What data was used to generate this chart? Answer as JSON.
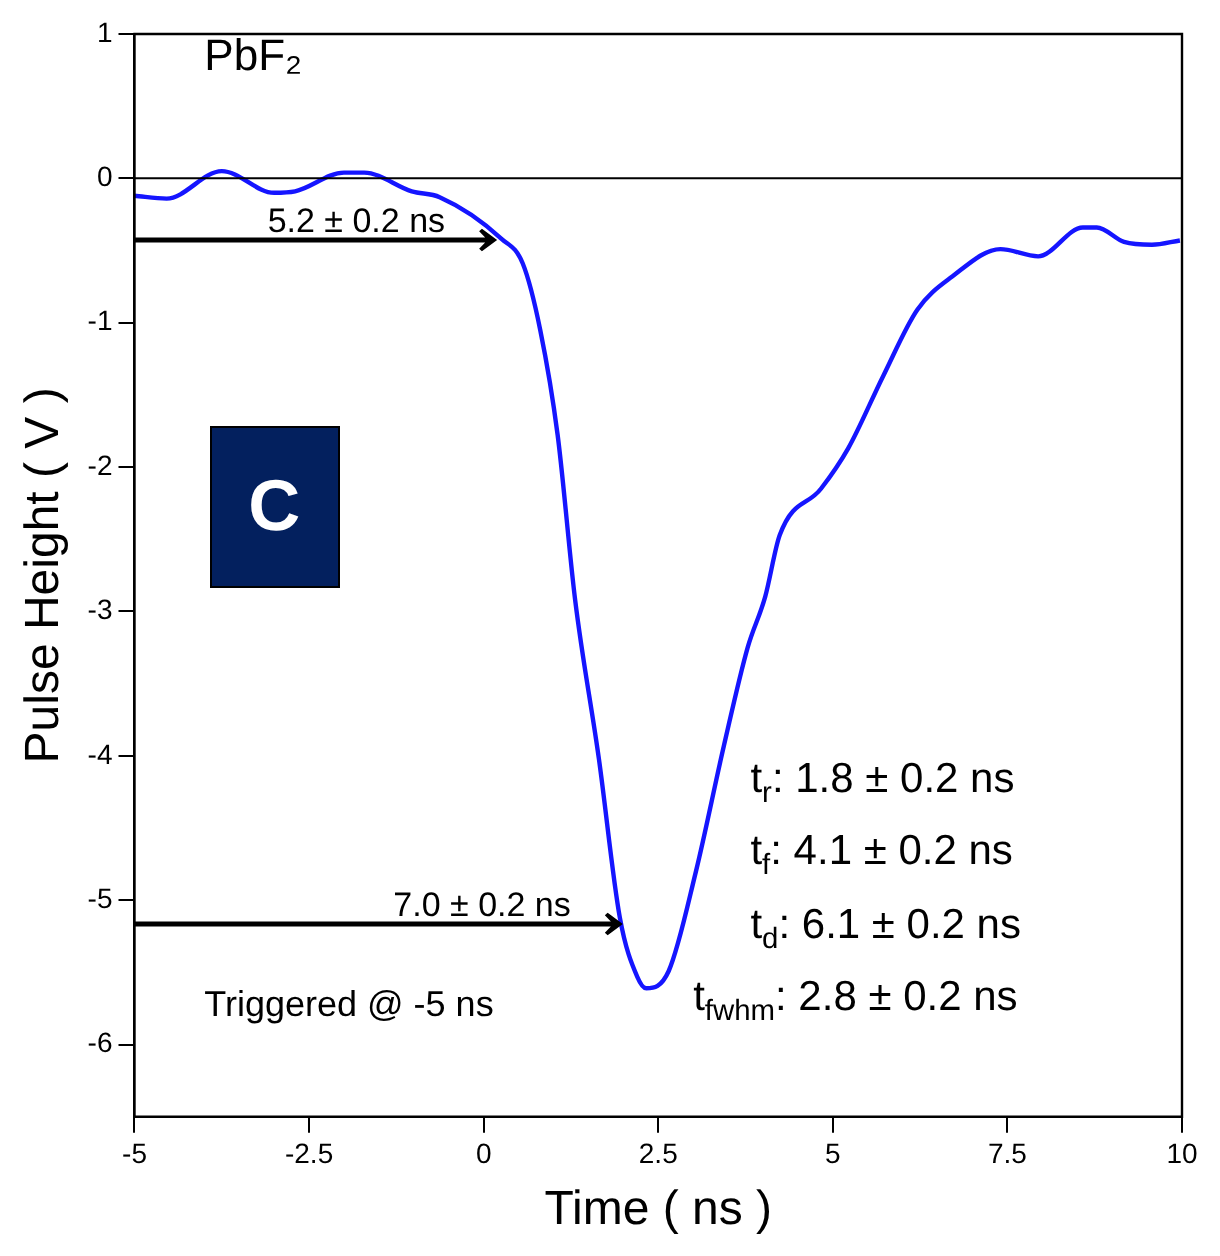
{
  "chart_data": {
    "type": "line",
    "xlabel": "Time ( ns )",
    "ylabel": "Pulse Height ( V )",
    "xlim": [
      -5,
      10
    ],
    "ylim": [
      -6.5,
      1
    ],
    "xticks": [
      -5,
      -2.5,
      0,
      2.5,
      5,
      7.5,
      10
    ],
    "yticks": [
      -6,
      -5,
      -4,
      -3,
      -2,
      -1,
      0,
      1
    ],
    "grid": false,
    "legend": false,
    "marker": "none",
    "line_style": "solid",
    "ref_lines": [
      {
        "axis": "y",
        "value": 0,
        "color": "#000000"
      }
    ],
    "series": [
      {
        "color": "#1515ff",
        "x": [
          -5,
          -4.54,
          -3.75,
          -3.0,
          -2.7,
          -2.0,
          -1.71,
          -1.03,
          -0.63,
          0.26,
          0.56,
          0.81,
          1.06,
          1.31,
          1.65,
          1.95,
          2.2,
          2.33,
          2.65,
          3.04,
          3.44,
          3.78,
          4.03,
          4.24,
          4.83,
          5.22,
          5.72,
          6.21,
          6.71,
          7.4,
          7.94,
          8.58,
          8.78,
          9.17,
          9.57,
          9.97
        ],
        "values": [
          -0.12,
          -0.14,
          0.05,
          -0.1,
          -0.09,
          0.04,
          0.04,
          -0.09,
          -0.13,
          -0.42,
          -0.59,
          -1.05,
          -1.78,
          -2.92,
          -4.02,
          -5.12,
          -5.53,
          -5.61,
          -5.49,
          -4.8,
          -3.93,
          -3.25,
          -2.9,
          -2.47,
          -2.15,
          -1.87,
          -1.37,
          -0.91,
          -0.68,
          -0.49,
          -0.54,
          -0.34,
          -0.34,
          -0.44,
          -0.46,
          -0.43
        ]
      }
    ],
    "annotations": [
      {
        "text": "5.2 ± 0.2 ns",
        "x": 0.2,
        "y": -0.42
      },
      {
        "text": "7.0 ± 0.2 ns",
        "x": 2.0,
        "y": -5.16
      },
      "PbF₂",
      "C",
      "Triggered @ -5 ns",
      "t$_{r}$: 1.8 ± 0.2 ns",
      "t$_{f}$: 4.1 ± 0.2 ns",
      "t$_{d}$: 6.1 ± 0.2 ns",
      "t$_{fwhm}$: 2.8 ± 0.2 ns"
    ]
  }
}
